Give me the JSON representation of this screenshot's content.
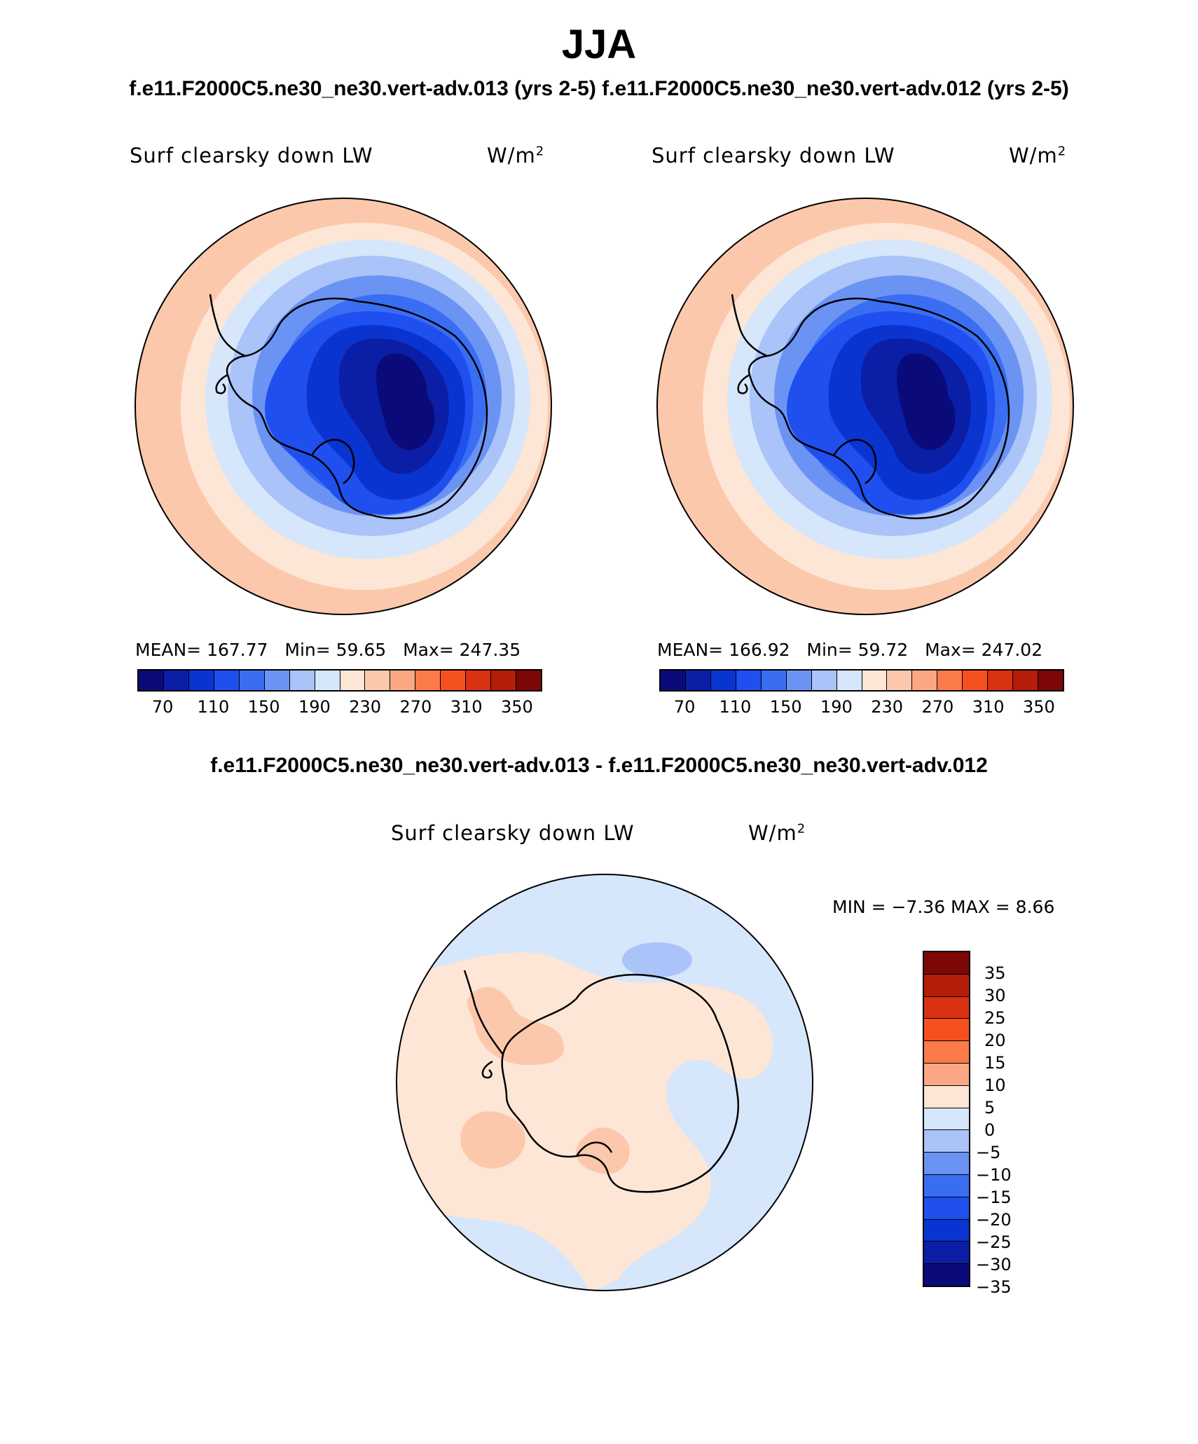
{
  "title": "JJA",
  "case_a": "f.e11.F2000C5.ne30_ne30.vert-adv.013 (yrs 2-5)",
  "case_b": "f.e11.F2000C5.ne30_ne30.vert-adv.012 (yrs 2-5)",
  "diff_title": "f.e11.F2000C5.ne30_ne30.vert-adv.013 - f.e11.F2000C5.ne30_ne30.vert-adv.012",
  "variable": "Surf clearsky down LW",
  "units": "W/m",
  "units_sup": "2",
  "panel_a": {
    "mean": "MEAN= 167.77",
    "min": "Min=   59.65",
    "max": "Max= 247.35"
  },
  "panel_b": {
    "mean": "MEAN= 166.92",
    "min": "Min=   59.72",
    "max": "Max= 247.02"
  },
  "diff_stats": "MIN =   −7.36 MAX =    8.66",
  "abs_colorbar": {
    "colors": [
      "#0a0a7a",
      "#0a1fa6",
      "#0a34d0",
      "#1f4fef",
      "#3a6ef2",
      "#6b93f4",
      "#aac3f8",
      "#d6e6fb",
      "#fde6d6",
      "#fcc8ac",
      "#fca783",
      "#fc7a4a",
      "#f5511f",
      "#d83212",
      "#b41e08",
      "#7d0606"
    ],
    "labels": [
      "70",
      "110",
      "150",
      "190",
      "230",
      "270",
      "310",
      "350"
    ]
  },
  "diff_colorbar": {
    "colors": [
      "#7d0606",
      "#b41e08",
      "#d83212",
      "#f5511f",
      "#fc7a4a",
      "#fca783",
      "#fde6d6",
      "#d6e6fb",
      "#aac3f8",
      "#6b93f4",
      "#3a6ef2",
      "#1f4fef",
      "#0a34d0",
      "#0a1fa6",
      "#0a0a7a"
    ],
    "colors_top_to_bottom": true,
    "labels": [
      "35",
      "30",
      "25",
      "20",
      "15",
      "10",
      "5",
      "0",
      "−5",
      "−10",
      "−15",
      "−20",
      "−25",
      "−30",
      "−35"
    ]
  },
  "map_colors": {
    "outer_warm": "#fcc8ac",
    "warm_light": "#fde6d6",
    "cool_lightest": "#d6e6fb",
    "cool_light": "#aac3f8",
    "cool_mid": "#6b93f4",
    "cool_blue": "#3a6ef2",
    "cool_strong": "#1f4fef",
    "cool_deep": "#0a34d0",
    "cool_deeper": "#0a1fa6",
    "cool_darkest": "#0a0a7a",
    "coastline": "#000000"
  }
}
